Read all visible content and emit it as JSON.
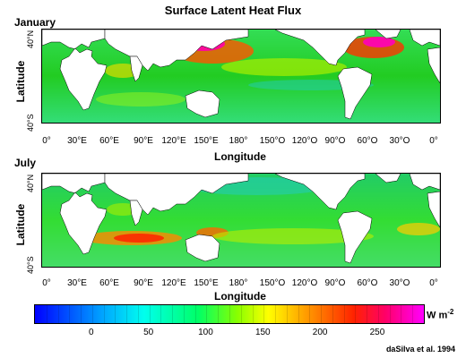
{
  "title": "Surface Latent Heat Flux",
  "panels": [
    {
      "label": "January",
      "lat_ticks": [
        "40°N",
        "40°S"
      ],
      "y_title": "Latitude",
      "lon_ticks": [
        "0°",
        "30°E",
        "60°E",
        "90°E",
        "120°E",
        "150°E",
        "180°",
        "150°O",
        "120°O",
        "90°O",
        "60°O",
        "30°O",
        "0°"
      ],
      "x_title": "Longitude"
    },
    {
      "label": "July",
      "lat_ticks": [
        "40°N",
        "40°S"
      ],
      "y_title": "Latitude",
      "lon_ticks": [
        "0°",
        "30°E",
        "60°E",
        "90°E",
        "120°E",
        "150°E",
        "180°",
        "150°O",
        "120°O",
        "90°O",
        "60°O",
        "30°O",
        "0°"
      ],
      "x_title": "Longitude"
    }
  ],
  "colorbar": {
    "ticks": [
      {
        "value": 0,
        "label": "0"
      },
      {
        "value": 50,
        "label": "50"
      },
      {
        "value": 100,
        "label": "100"
      },
      {
        "value": 150,
        "label": "150"
      },
      {
        "value": 200,
        "label": "200"
      },
      {
        "value": 250,
        "label": "250"
      }
    ],
    "min": -50,
    "max": 290,
    "unit_main": "W m",
    "unit_exp": "-2"
  },
  "credit": "daSilva et al. 1994",
  "colors": {
    "land": "#ffffff",
    "ocean_base": "#22dd22",
    "high": "#ff00ff",
    "low": "#0066ff"
  }
}
